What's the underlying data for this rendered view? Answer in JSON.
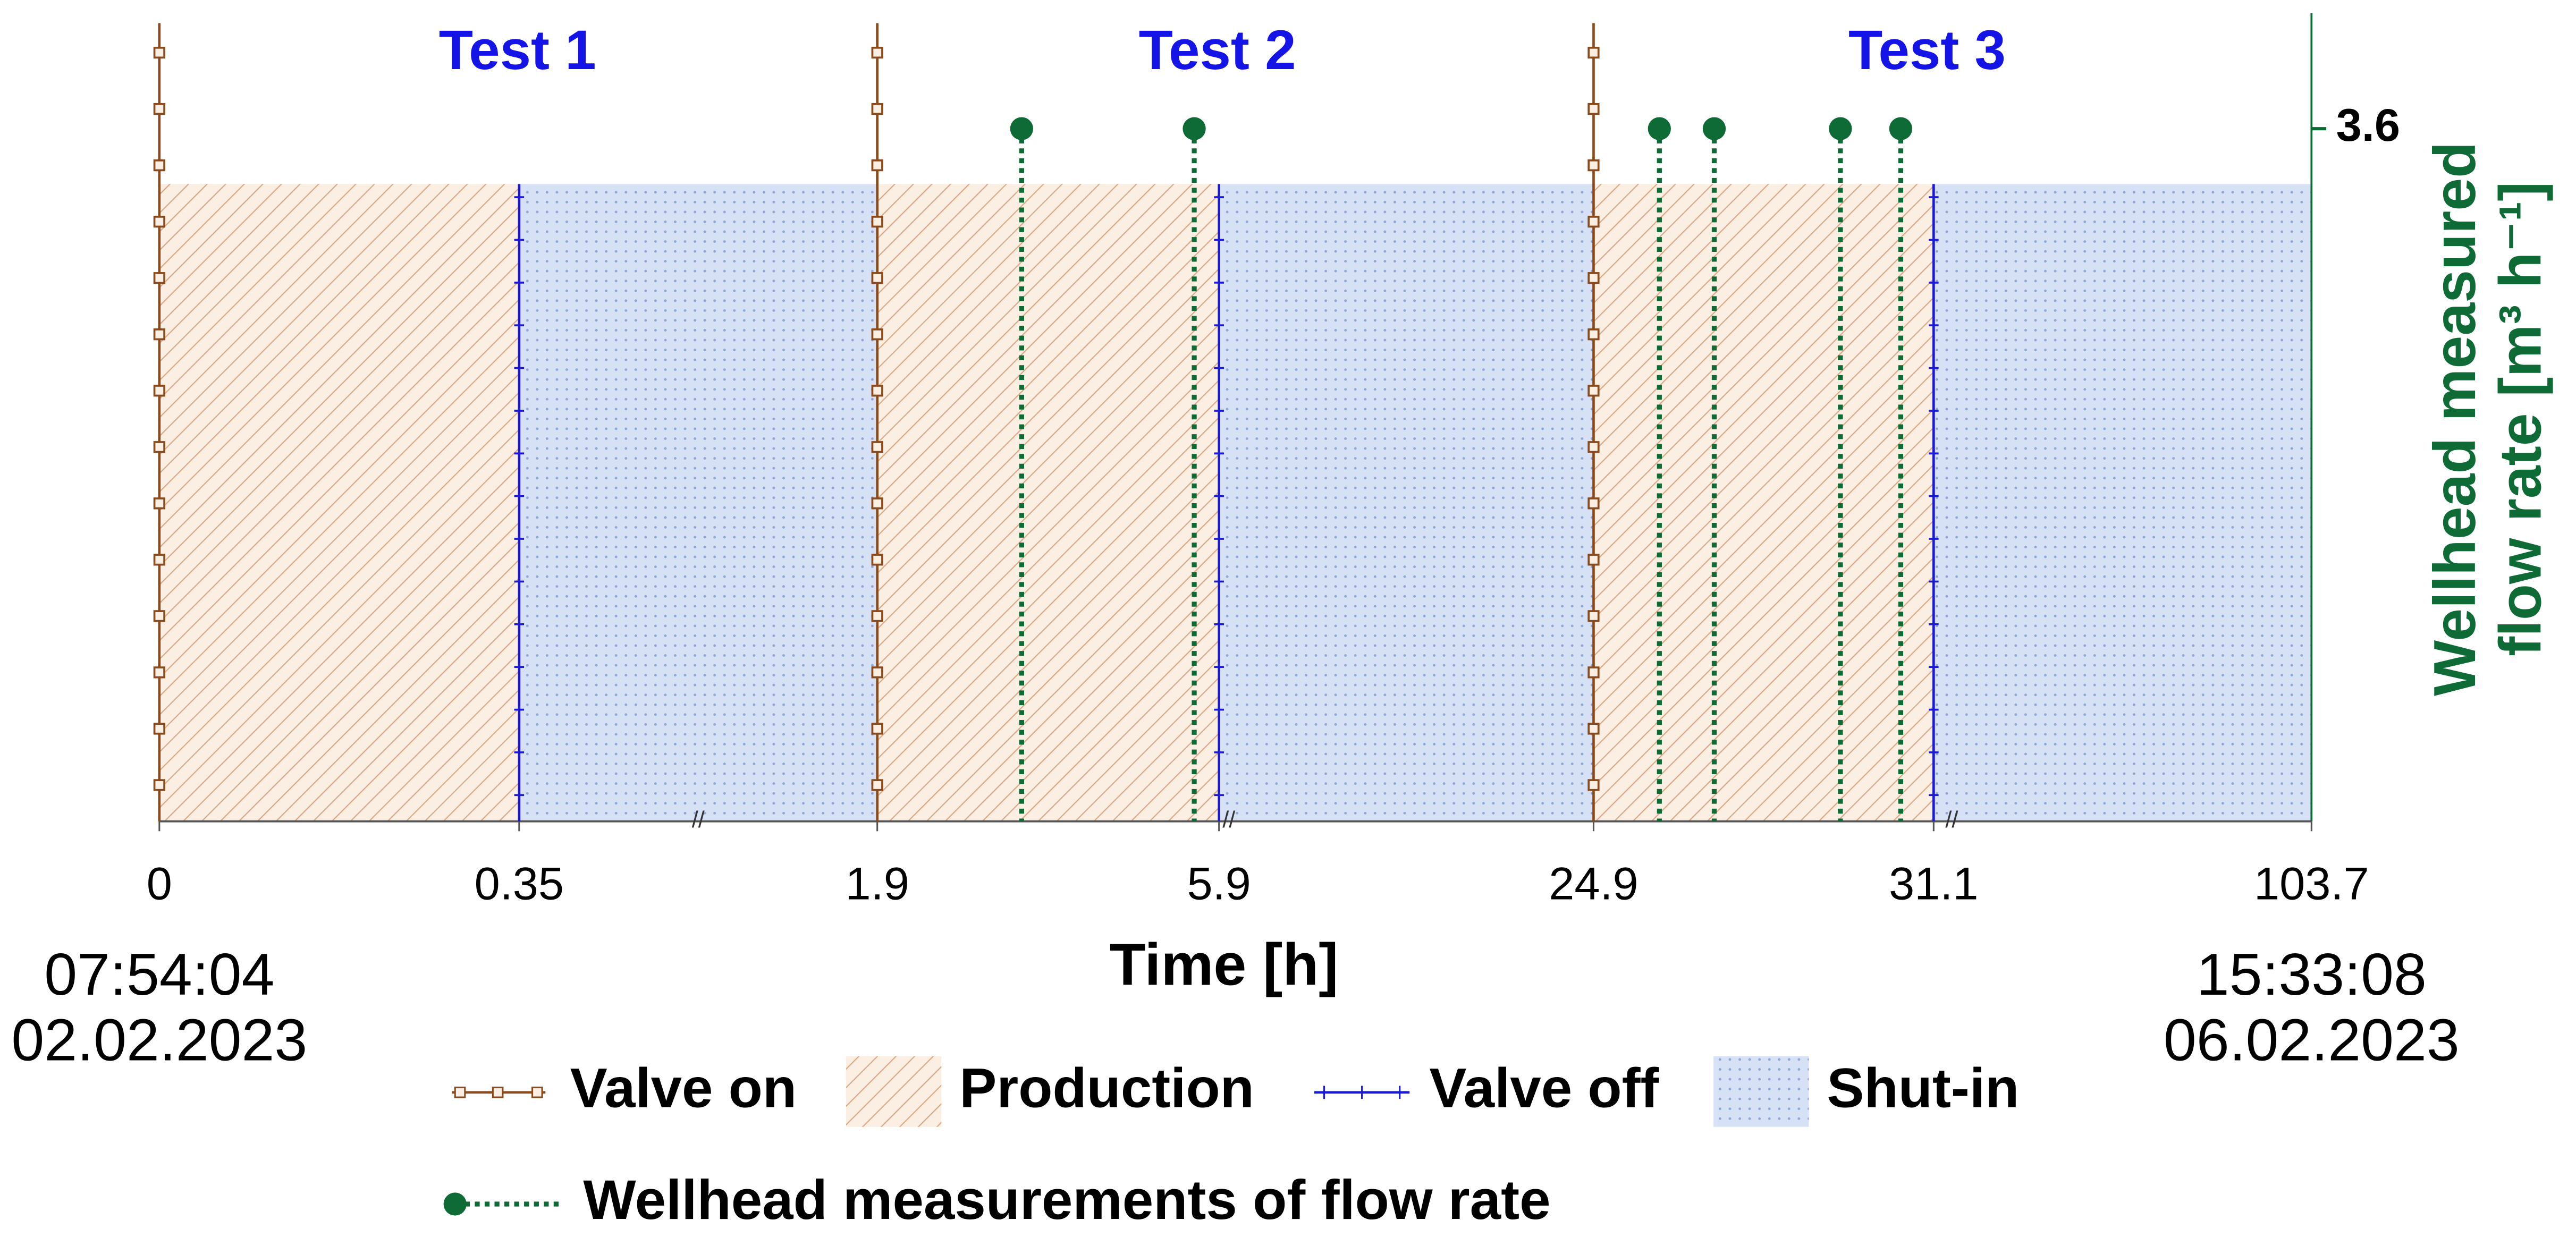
{
  "chart_data": {
    "type": "timeline",
    "test_labels": [
      "Test 1",
      "Test 2",
      "Test 3"
    ],
    "test_color": "#1414e6",
    "xlabel": "Time [h]",
    "xticks": [
      0,
      0.35,
      1.9,
      5.9,
      24.9,
      31.1,
      103.7
    ],
    "start_time": [
      "07:54:04",
      "02.02.2023"
    ],
    "end_time": [
      "15:33:08",
      "06.02.2023"
    ],
    "y2label": [
      "Wellhead measured",
      "flow rate [m³ h⁻¹]"
    ],
    "y2lim": [
      0,
      4.2
    ],
    "y2ticks": [
      3.6
    ],
    "axis_color": "#0f6b35",
    "valve_on": {
      "name": "Valve on",
      "color": "#8b4a1c",
      "x": [
        0,
        1.9,
        24.9
      ]
    },
    "production": {
      "name": "Production",
      "color": "#d9a07a",
      "intervals": [
        [
          0,
          0.35
        ],
        [
          1.9,
          5.9
        ],
        [
          24.9,
          31.1
        ]
      ]
    },
    "valve_off": {
      "name": "Valve off",
      "color": "#1a1ad6",
      "x": [
        0.35,
        5.9,
        31.1
      ]
    },
    "shut_in": {
      "name": "Shut-in",
      "color": "#8fa6d8",
      "intervals": [
        [
          0.35,
          1.9
        ],
        [
          5.9,
          24.9
        ],
        [
          31.1,
          103.7
        ]
      ]
    },
    "measurements": {
      "name": "Wellhead measurements of flow rate",
      "color": "#0f6b35",
      "x": [
        3.59,
        5.61,
        26.1,
        27.1,
        29.4,
        30.5
      ],
      "values": [
        3.6,
        3.6,
        3.6,
        3.6,
        3.6,
        3.6
      ]
    }
  }
}
